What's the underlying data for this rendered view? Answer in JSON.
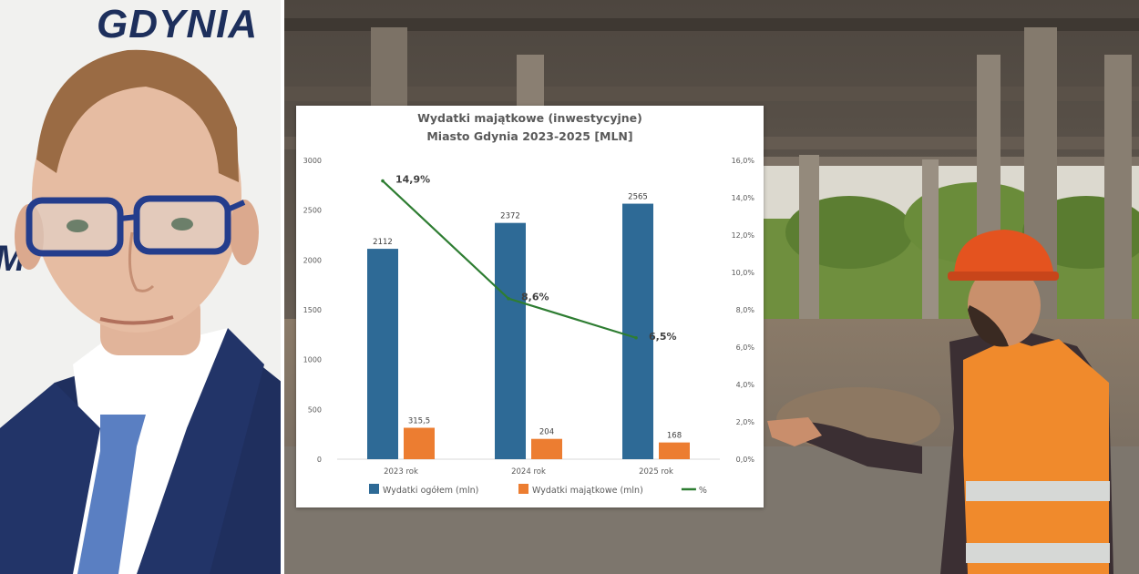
{
  "portrait": {
    "logo_text": "GDYNIA",
    "logo_partial_text": "M"
  },
  "chart_data": {
    "type": "bar",
    "title_line1": "Wydatki majątkowe (inwestycyjne)",
    "title_line2": "Miasto Gdynia 2023-2025 [MLN]",
    "categories": [
      "2023 rok",
      "2024 rok",
      "2025 rok"
    ],
    "series": [
      {
        "name": "Wydatki ogółem (mln)",
        "type": "bar",
        "axis": "left",
        "color": "#2e6a96",
        "values": [
          2112,
          2372,
          2565
        ],
        "labels": [
          "2112",
          "2372",
          "2565"
        ]
      },
      {
        "name": "Wydatki majątkowe (mln)",
        "type": "bar",
        "axis": "left",
        "color": "#ec7d31",
        "values": [
          315.5,
          204,
          168
        ],
        "labels": [
          "315,5",
          "204",
          "168"
        ]
      },
      {
        "name": "%",
        "type": "line",
        "axis": "right",
        "color": "#2e7d32",
        "values": [
          14.9,
          8.6,
          6.5
        ],
        "labels": [
          "14,9%",
          "8,6%",
          "6,5%"
        ]
      }
    ],
    "ylim_left": [
      0,
      3000
    ],
    "yticks_left": [
      "0",
      "500",
      "1000",
      "1500",
      "2000",
      "2500",
      "3000"
    ],
    "ylim_right": [
      0,
      16
    ],
    "yticks_right": [
      "0,0%",
      "2,0%",
      "4,0%",
      "6,0%",
      "8,0%",
      "10,0%",
      "12,0%",
      "14,0%",
      "16,0%"
    ],
    "legend_position": "bottom",
    "grid": false
  }
}
